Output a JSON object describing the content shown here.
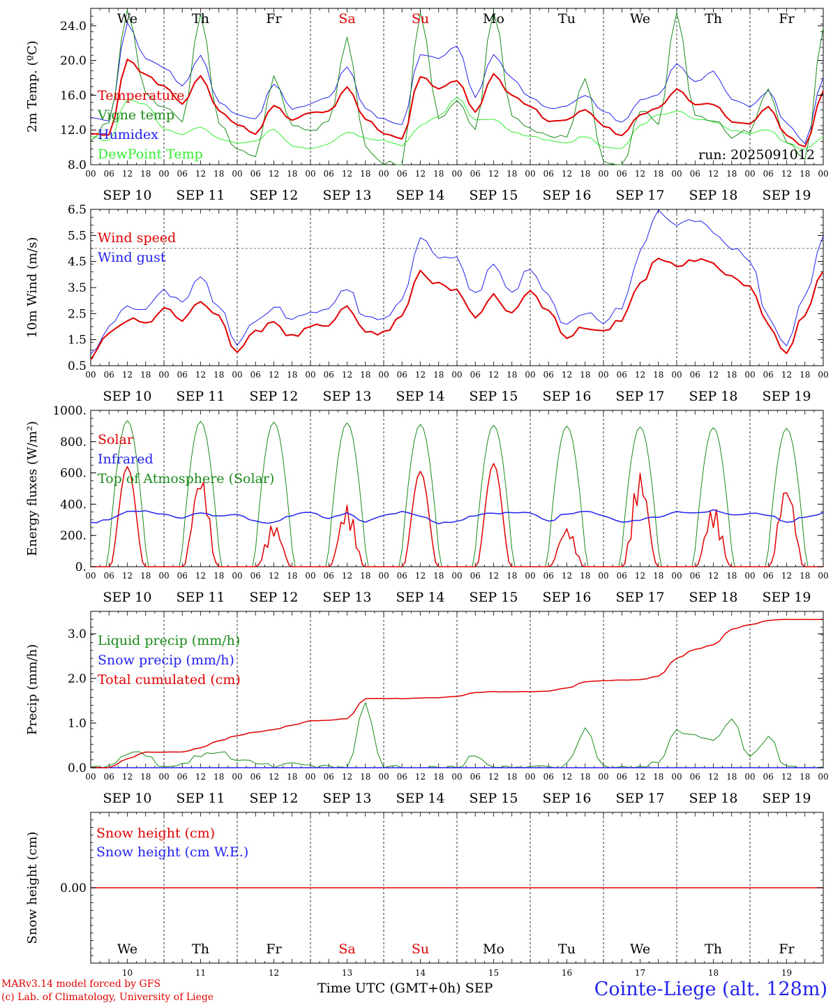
{
  "days": [
    "SEP 10",
    "SEP 11",
    "SEP 12",
    "SEP 13",
    "SEP 14",
    "SEP 15",
    "SEP 16",
    "SEP 17",
    "SEP 18",
    "SEP 19"
  ],
  "weekdays": [
    "We",
    "Th",
    "Fr",
    "Sa",
    "Su",
    "Mo",
    "Tu",
    "We",
    "Th",
    "Fr"
  ],
  "weekday_colors": [
    "#000000",
    "#000000",
    "#000000",
    "#e00000",
    "#e00000",
    "#000000",
    "#000000",
    "#000000",
    "#000000",
    "#000000"
  ],
  "day_numbers": [
    "10",
    "11",
    "12",
    "13",
    "14",
    "15",
    "16",
    "17",
    "18",
    "19"
  ],
  "hour_ticks": [
    "00",
    "06",
    "12",
    "18"
  ],
  "hour_end": "00",
  "footer": {
    "model": "MARv3.14 model forced by GFS",
    "lab": "(c) Lab. of Climatology, University of Liege",
    "axis": "Time UTC (GMT+0h) SEP",
    "station": "Cointe-Liege (alt. 128m)"
  },
  "chart_data": [
    {
      "id": "temperature",
      "type": "line",
      "ylabel": "2m Temp. (ºC)",
      "ylim": [
        8,
        26
      ],
      "yticks": [
        "8.0",
        "12.0",
        "16.0",
        "20.0",
        "24.0"
      ],
      "ytick_values": [
        8,
        12,
        16,
        20,
        24
      ],
      "annotation": "run: 2025091012",
      "x": [
        0,
        6,
        12,
        18,
        24,
        30,
        36,
        42,
        48,
        54,
        60,
        66,
        72,
        78,
        84,
        90,
        96,
        102,
        108,
        114,
        120,
        126,
        132,
        138,
        144,
        150,
        156,
        162,
        168,
        174,
        180,
        186,
        192,
        198,
        204,
        210,
        216,
        222,
        228,
        234,
        240
      ],
      "series": [
        {
          "name": "Temperature",
          "color": "#e00000",
          "width": 2,
          "values": [
            11.6,
            11.4,
            20.1,
            18.3,
            17.0,
            15.0,
            18.2,
            14.2,
            12.6,
            11.6,
            14.8,
            13.2,
            14.0,
            14.1,
            16.9,
            13.3,
            11.6,
            11.0,
            18.2,
            16.7,
            17.7,
            14.0,
            18.4,
            16.0,
            14.8,
            13.0,
            13.2,
            14.4,
            12.5,
            11.3,
            13.8,
            14.5,
            16.7,
            14.9,
            15.0,
            13.0,
            12.7,
            14.6,
            11.4,
            10.0,
            16.4
          ]
        },
        {
          "name": "Vigne temp",
          "color": "#1a8a1a",
          "width": 1,
          "values": [
            11.0,
            12.8,
            25.6,
            16.0,
            14.7,
            13.2,
            25.2,
            13.0,
            9.7,
            9.0,
            18.0,
            12.5,
            11.8,
            13.0,
            22.4,
            10.0,
            8.2,
            8.0,
            25.6,
            13.4,
            15.3,
            12.0,
            25.8,
            13.8,
            12.1,
            11.3,
            11.2,
            18.0,
            8.6,
            7.6,
            14.2,
            12.8,
            25.8,
            13.5,
            13.2,
            11.3,
            11.8,
            16.8,
            10.5,
            8.5,
            23.6
          ]
        },
        {
          "name": "Humidex",
          "color": "#2222ee",
          "width": 1,
          "values": [
            13.5,
            13.0,
            24.3,
            20.3,
            19.2,
            17.0,
            20.5,
            15.3,
            13.8,
            13.2,
            17.3,
            14.4,
            15.0,
            15.8,
            19.3,
            14.4,
            13.2,
            12.7,
            20.7,
            20.2,
            21.7,
            15.7,
            20.6,
            17.9,
            15.7,
            14.4,
            14.8,
            16.0,
            14.2,
            12.8,
            15.4,
            16.0,
            19.6,
            17.6,
            18.7,
            15.6,
            14.7,
            16.5,
            12.7,
            10.5,
            18.1
          ]
        },
        {
          "name": "DewPoint Temp",
          "color": "#33ee33",
          "width": 1,
          "values": [
            11.3,
            10.7,
            15.5,
            15.0,
            12.0,
            11.5,
            12.3,
            11.0,
            10.5,
            10.8,
            12.1,
            10.2,
            9.8,
            10.4,
            11.8,
            11.0,
            10.8,
            10.2,
            12.5,
            13.5,
            15.8,
            13.2,
            13.3,
            11.8,
            11.3,
            10.8,
            10.5,
            11.3,
            10.0,
            9.8,
            12.5,
            13.7,
            14.2,
            13.2,
            13.0,
            12.0,
            11.6,
            12.0,
            10.5,
            9.7,
            11.2
          ]
        }
      ]
    },
    {
      "id": "wind",
      "type": "line",
      "ylabel": "10m Wind (m/s)",
      "ylim": [
        0.5,
        6.5
      ],
      "yticks": [
        "0.5",
        "1.5",
        "2.5",
        "3.5",
        "4.5",
        "5.5",
        "6.5"
      ],
      "ytick_values": [
        0.5,
        1.5,
        2.5,
        3.5,
        4.5,
        5.5,
        6.5
      ],
      "dashed_y": 5.0,
      "x": [
        0,
        6,
        12,
        18,
        24,
        30,
        36,
        42,
        48,
        54,
        60,
        66,
        72,
        78,
        84,
        90,
        96,
        102,
        108,
        114,
        120,
        126,
        132,
        138,
        144,
        150,
        156,
        162,
        168,
        174,
        180,
        186,
        192,
        198,
        204,
        210,
        216,
        222,
        228,
        234,
        240
      ],
      "series": [
        {
          "name": "Wind speed",
          "color": "#e00000",
          "width": 2,
          "values": [
            0.8,
            1.7,
            2.3,
            2.1,
            2.7,
            2.3,
            3.0,
            2.4,
            1.0,
            1.8,
            2.2,
            1.6,
            2.0,
            2.1,
            2.8,
            1.7,
            1.8,
            2.4,
            4.1,
            3.6,
            3.4,
            2.3,
            3.2,
            2.5,
            3.3,
            2.6,
            1.5,
            2.0,
            1.8,
            2.3,
            3.6,
            4.7,
            4.3,
            4.6,
            4.4,
            3.9,
            3.5,
            2.0,
            1.0,
            2.5,
            4.2
          ]
        },
        {
          "name": "Wind gust",
          "color": "#2222ee",
          "width": 1,
          "values": [
            1.0,
            2.0,
            2.8,
            2.6,
            3.4,
            2.9,
            3.9,
            2.8,
            1.3,
            2.2,
            2.8,
            2.2,
            2.6,
            2.8,
            3.5,
            2.3,
            2.2,
            3.1,
            5.4,
            4.7,
            4.6,
            3.2,
            4.4,
            3.3,
            4.3,
            3.1,
            2.0,
            2.6,
            2.0,
            2.8,
            4.8,
            6.4,
            5.9,
            6.1,
            5.7,
            5.0,
            4.5,
            2.4,
            1.2,
            3.2,
            5.4
          ]
        }
      ]
    },
    {
      "id": "energy",
      "type": "line",
      "ylabel": "Energy fluxes (W/m²)",
      "ylim": [
        0,
        1000
      ],
      "yticks": [
        "0.",
        "200.",
        "400.",
        "600.",
        "800.",
        "1000."
      ],
      "ytick_values": [
        0,
        200,
        400,
        600,
        800,
        1000
      ],
      "series": [
        {
          "name": "Solar",
          "color": "#e00000",
          "width": 1.5,
          "daily_peaks": [
            640,
            610,
            280,
            400,
            610,
            660,
            260,
            620,
            390,
            550
          ]
        },
        {
          "name": "Infrared",
          "color": "#2222ee",
          "width": 1.5,
          "values": [
            280,
            300,
            350,
            355,
            340,
            310,
            345,
            320,
            330,
            290,
            280,
            330,
            350,
            310,
            340,
            290,
            330,
            350,
            320,
            280,
            290,
            330,
            340,
            350,
            340,
            290,
            340,
            350,
            330,
            280,
            300,
            320,
            350,
            340,
            360,
            330,
            340,
            330,
            280,
            320,
            340
          ]
        },
        {
          "name": "Top of Atmosphere (Solar)",
          "color": "#1a8a1a",
          "width": 1,
          "daily_peaks": [
            935,
            930,
            925,
            920,
            910,
            905,
            900,
            895,
            890,
            885
          ]
        }
      ]
    },
    {
      "id": "precip",
      "type": "line",
      "ylabel": "Precip (mm/h)",
      "ylim": [
        0,
        3.5
      ],
      "yticks": [
        "0.0",
        "1.0",
        "2.0",
        "3.0"
      ],
      "ytick_values": [
        0,
        1,
        2,
        3
      ],
      "x": [
        0,
        6,
        12,
        18,
        24,
        30,
        36,
        42,
        48,
        54,
        60,
        66,
        72,
        78,
        84,
        90,
        96,
        102,
        108,
        114,
        120,
        126,
        132,
        138,
        144,
        150,
        156,
        162,
        168,
        174,
        180,
        186,
        192,
        198,
        204,
        210,
        216,
        222,
        228,
        234,
        240
      ],
      "series": [
        {
          "name": "Liquid precip (mm/h)",
          "color": "#1a8a1a",
          "width": 1,
          "values": [
            0,
            0,
            0.35,
            0.3,
            0,
            0.05,
            0.3,
            0.35,
            0.2,
            0.1,
            0.05,
            0.15,
            0.05,
            0,
            0.05,
            1.4,
            0,
            0,
            0,
            0,
            0,
            0.3,
            0,
            0,
            0,
            0,
            0.05,
            0.85,
            0,
            0,
            0,
            0.1,
            0.85,
            0.7,
            0.6,
            1.1,
            0.2,
            0.7,
            0,
            0,
            0
          ]
        },
        {
          "name": "Snow precip (mm/h)",
          "color": "#2222ee",
          "width": 1,
          "values": [
            0,
            0,
            0,
            0,
            0,
            0,
            0,
            0,
            0,
            0,
            0,
            0,
            0,
            0,
            0,
            0,
            0,
            0,
            0,
            0,
            0,
            0,
            0,
            0,
            0,
            0,
            0,
            0,
            0,
            0,
            0,
            0,
            0,
            0,
            0,
            0,
            0,
            0,
            0,
            0,
            0
          ]
        },
        {
          "name": "Total cumulated (cm)",
          "color": "#e00000",
          "width": 1.5,
          "values": [
            0,
            0,
            0.2,
            0.35,
            0.35,
            0.35,
            0.45,
            0.6,
            0.72,
            0.8,
            0.85,
            0.95,
            1.05,
            1.06,
            1.1,
            1.55,
            1.55,
            1.55,
            1.56,
            1.57,
            1.6,
            1.68,
            1.7,
            1.7,
            1.7,
            1.72,
            1.78,
            1.92,
            1.95,
            1.96,
            1.97,
            2.05,
            2.45,
            2.65,
            2.75,
            3.1,
            3.2,
            3.3,
            3.32,
            3.32,
            3.32
          ]
        }
      ]
    },
    {
      "id": "snow",
      "type": "line",
      "ylabel": "Snow height (cm)",
      "ylim": [
        -1,
        1
      ],
      "yticks": [
        "0.00"
      ],
      "ytick_values": [
        0
      ],
      "series": [
        {
          "name": "Snow height (cm)",
          "color": "#e00000",
          "width": 1.5,
          "values": [
            0,
            0
          ]
        },
        {
          "name": "Snow height (cm W.E.)",
          "color": "#2222ee",
          "width": 1,
          "values": [
            0,
            0
          ]
        }
      ]
    }
  ]
}
